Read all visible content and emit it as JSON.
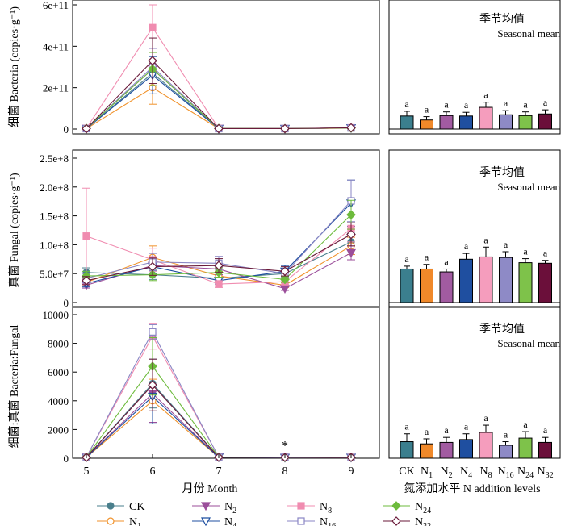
{
  "series_styles": [
    {
      "key": "CK",
      "label_base": "CK",
      "label_sub": "",
      "color": "#4a7f8c",
      "marker": "circle",
      "fill": true,
      "bar_color": "#3b7f8e"
    },
    {
      "key": "N1",
      "label_base": "N",
      "label_sub": "1",
      "color": "#f0922b",
      "marker": "circle",
      "fill": false,
      "bar_color": "#f0892a"
    },
    {
      "key": "N2",
      "label_base": "N",
      "label_sub": "2",
      "color": "#9b4e9a",
      "marker": "tri-down",
      "fill": true,
      "bar_color": "#a25ba1"
    },
    {
      "key": "N4",
      "label_base": "N",
      "label_sub": "4",
      "color": "#1f4fa0",
      "marker": "tri-down",
      "fill": false,
      "bar_color": "#1f4fa0"
    },
    {
      "key": "N8",
      "label_base": "N",
      "label_sub": "8",
      "color": "#f08cb0",
      "marker": "square",
      "fill": true,
      "bar_color": "#f59dbd"
    },
    {
      "key": "N16",
      "label_base": "N",
      "label_sub": "16",
      "color": "#8a86c4",
      "marker": "square",
      "fill": false,
      "bar_color": "#8e8ac6"
    },
    {
      "key": "N24",
      "label_base": "N",
      "label_sub": "24",
      "color": "#6dbb3c",
      "marker": "diamond",
      "fill": true,
      "bar_color": "#7ec24a"
    },
    {
      "key": "N32",
      "label_base": "N",
      "label_sub": "32",
      "color": "#6a1a3a",
      "marker": "diamond",
      "fill": false,
      "bar_color": "#6b0f3a"
    }
  ],
  "x_axis": {
    "ticks": [
      5,
      6,
      7,
      8,
      9
    ],
    "xlabel": "月份 Month"
  },
  "bar_x_axis": {
    "xlabel": "氮添加水平 N addition levels"
  },
  "legend_order": [
    "CK",
    "N2",
    "N8",
    "N24",
    "N1",
    "N4",
    "N16",
    "N32"
  ],
  "chart_data": [
    {
      "type": "line",
      "panel": "bacteria",
      "ylabel": "细菌 Bacteria (copies·g⁻¹)",
      "ylim": [
        0,
        600000000000
      ],
      "yticks": [
        0,
        200000000000,
        400000000000,
        600000000000
      ],
      "ytick_labels": [
        "0",
        "2e+11",
        "4e+11",
        "6e+11"
      ],
      "x": [
        5,
        6,
        7,
        8,
        9
      ],
      "series": [
        {
          "name": "CK",
          "values": [
            2000000000.0,
            270000000000.0,
            3000000000.0,
            2000000000.0,
            5000000000.0
          ],
          "err": [
            1000000000.0,
            60000000000.0,
            1000000000.0,
            1000000000.0,
            2000000000.0
          ]
        },
        {
          "name": "N1",
          "values": [
            2000000000.0,
            200000000000.0,
            2000000000.0,
            2000000000.0,
            4000000000.0
          ],
          "err": [
            1000000000.0,
            80000000000.0,
            1000000000.0,
            1000000000.0,
            2000000000.0
          ]
        },
        {
          "name": "N2",
          "values": [
            3000000000.0,
            290000000000.0,
            3000000000.0,
            2000000000.0,
            5000000000.0
          ],
          "err": [
            1000000000.0,
            100000000000.0,
            1000000000.0,
            1000000000.0,
            2000000000.0
          ]
        },
        {
          "name": "N4",
          "values": [
            2000000000.0,
            260000000000.0,
            2000000000.0,
            2000000000.0,
            5000000000.0
          ],
          "err": [
            1000000000.0,
            90000000000.0,
            1000000000.0,
            1000000000.0,
            2000000000.0
          ]
        },
        {
          "name": "N8",
          "values": [
            3000000000.0,
            490000000000.0,
            3000000000.0,
            2000000000.0,
            6000000000.0
          ],
          "err": [
            1000000000.0,
            120000000000.0,
            1000000000.0,
            1000000000.0,
            2000000000.0
          ]
        },
        {
          "name": "N16",
          "values": [
            2000000000.0,
            300000000000.0,
            2000000000.0,
            2000000000.0,
            5000000000.0
          ],
          "err": [
            1000000000.0,
            90000000000.0,
            1000000000.0,
            1000000000.0,
            2000000000.0
          ]
        },
        {
          "name": "N24",
          "values": [
            3000000000.0,
            290000000000.0,
            3000000000.0,
            2000000000.0,
            5000000000.0
          ],
          "err": [
            1000000000.0,
            80000000000.0,
            1000000000.0,
            1000000000.0,
            2000000000.0
          ]
        },
        {
          "name": "N32",
          "values": [
            2000000000.0,
            330000000000.0,
            2000000000.0,
            2000000000.0,
            6000000000.0
          ],
          "err": [
            1000000000.0,
            110000000000.0,
            1000000000.0,
            1000000000.0,
            2000000000.0
          ]
        }
      ]
    },
    {
      "type": "bar",
      "panel": "bacteria-seasonal",
      "title_cn": "季节均值",
      "title_en": "Seasonal mean",
      "ylim": [
        0,
        600000000000
      ],
      "categories": [
        "CK",
        "N1",
        "N2",
        "N4",
        "N8",
        "N16",
        "N24",
        "N32"
      ],
      "values": [
        63000000000.0,
        44000000000.0,
        65000000000.0,
        63000000000.0,
        105000000000.0,
        69000000000.0,
        65000000000.0,
        73000000000.0
      ],
      "err": [
        23000000000.0,
        16000000000.0,
        18000000000.0,
        18000000000.0,
        25000000000.0,
        20000000000.0,
        18000000000.0,
        20000000000.0
      ],
      "letters": [
        "a",
        "a",
        "a",
        "a",
        "a",
        "a",
        "a",
        "a"
      ]
    },
    {
      "type": "line",
      "panel": "fungal",
      "ylabel": "真菌 Fungal (copies·g⁻¹)",
      "ylim": [
        0,
        250000000
      ],
      "yticks": [
        0,
        50000000,
        100000000,
        150000000,
        200000000,
        250000000
      ],
      "ytick_labels": [
        "0",
        "5.0e+7",
        "1.0e+8",
        "1.5e+8",
        "2.0e+8",
        "2.5e+8"
      ],
      "x": [
        5,
        6,
        7,
        8,
        9
      ],
      "series": [
        {
          "name": "CK",
          "values": [
            52000000.0,
            48000000.0,
            42000000.0,
            50000000.0,
            105000000.0
          ],
          "err": [
            8000000.0,
            8000000.0,
            6000000.0,
            5000000.0,
            15000000.0
          ]
        },
        {
          "name": "N1",
          "values": [
            35000000.0,
            78000000.0,
            46000000.0,
            30000000.0,
            98000000.0
          ],
          "err": [
            6000000.0,
            20000000.0,
            8000000.0,
            4000000.0,
            15000000.0
          ]
        },
        {
          "name": "N2",
          "values": [
            30000000.0,
            64000000.0,
            58000000.0,
            24000000.0,
            86000000.0
          ],
          "err": [
            5000000.0,
            15000000.0,
            10000000.0,
            3000000.0,
            12000000.0
          ]
        },
        {
          "name": "N4",
          "values": [
            33000000.0,
            62000000.0,
            38000000.0,
            54000000.0,
            172000000.0
          ],
          "err": [
            6000000.0,
            12000000.0,
            6000000.0,
            10000000.0,
            40000000.0
          ]
        },
        {
          "name": "N8",
          "values": [
            115000000.0,
            74000000.0,
            32000000.0,
            36000000.0,
            128000000.0
          ],
          "err": [
            83000000.0,
            20000000.0,
            6000000.0,
            5000000.0,
            23000000.0
          ]
        },
        {
          "name": "N16",
          "values": [
            42000000.0,
            70000000.0,
            68000000.0,
            50000000.0,
            176000000.0
          ],
          "err": [
            8000000.0,
            15000000.0,
            12000000.0,
            6000000.0,
            36000000.0
          ]
        },
        {
          "name": "N24",
          "values": [
            46000000.0,
            48000000.0,
            52000000.0,
            40000000.0,
            152000000.0
          ],
          "err": [
            8000000.0,
            10000000.0,
            8000000.0,
            5000000.0,
            25000000.0
          ]
        },
        {
          "name": "N32",
          "values": [
            38000000.0,
            62000000.0,
            64000000.0,
            54000000.0,
            118000000.0
          ],
          "err": [
            7000000.0,
            15000000.0,
            12000000.0,
            8000000.0,
            20000000.0
          ]
        }
      ]
    },
    {
      "type": "bar",
      "panel": "fungal-seasonal",
      "title_cn": "季节均值",
      "title_en": "Seasonal mean",
      "ylim": [
        0,
        250000000
      ],
      "categories": [
        "CK",
        "N1",
        "N2",
        "N4",
        "N8",
        "N16",
        "N24",
        "N32"
      ],
      "values": [
        58000000.0,
        58000000.0,
        53000000.0,
        75000000.0,
        79000000.0,
        78000000.0,
        69000000.0,
        68000000.0
      ],
      "err": [
        5000000.0,
        8000000.0,
        5000000.0,
        10000000.0,
        17000000.0,
        10000000.0,
        7000000.0,
        5000000.0
      ],
      "letters": [
        "a",
        "a",
        "a",
        "a",
        "a",
        "a",
        "a",
        "a"
      ]
    },
    {
      "type": "line",
      "panel": "ratio",
      "ylabel": "细菌:真菌 Bacteria:Fungal",
      "ylim": [
        0,
        10000
      ],
      "yticks": [
        0,
        2000,
        4000,
        6000,
        8000,
        10000
      ],
      "ytick_labels": [
        "0",
        "2000",
        "4000",
        "6000",
        "8000",
        "10000"
      ],
      "x": [
        5,
        6,
        7,
        8,
        9
      ],
      "annotation": {
        "x": 8,
        "y": 600,
        "text": "*"
      },
      "series": [
        {
          "name": "CK",
          "values": [
            60,
            5200,
            80,
            50,
            60
          ],
          "err": [
            20,
            1700,
            30,
            20,
            20
          ]
        },
        {
          "name": "N1",
          "values": [
            50,
            4000,
            60,
            60,
            50
          ],
          "err": [
            20,
            1500,
            20,
            20,
            20
          ]
        },
        {
          "name": "N2",
          "values": [
            70,
            4500,
            70,
            50,
            60
          ],
          "err": [
            20,
            2000,
            20,
            20,
            20
          ]
        },
        {
          "name": "N4",
          "values": [
            60,
            4300,
            60,
            40,
            50
          ],
          "err": [
            20,
            1900,
            20,
            20,
            20
          ]
        },
        {
          "name": "N8",
          "values": [
            80,
            8500,
            90,
            60,
            60
          ],
          "err": [
            20,
            900,
            30,
            20,
            20
          ]
        },
        {
          "name": "N16",
          "values": [
            60,
            8800,
            70,
            70,
            50
          ],
          "err": [
            20,
            500,
            20,
            20,
            20
          ]
        },
        {
          "name": "N24",
          "values": [
            70,
            6400,
            80,
            50,
            60
          ],
          "err": [
            20,
            2000,
            30,
            20,
            20
          ]
        },
        {
          "name": "N32",
          "values": [
            60,
            5100,
            70,
            60,
            60
          ],
          "err": [
            20,
            1800,
            20,
            20,
            20
          ]
        }
      ]
    },
    {
      "type": "bar",
      "panel": "ratio-seasonal",
      "title_cn": "季节均值",
      "title_en": "Seasonal mean",
      "ylim": [
        0,
        10000
      ],
      "categories": [
        "CK",
        "N1",
        "N2",
        "N4",
        "N8",
        "N16",
        "N24",
        "N32"
      ],
      "values": [
        1150,
        1000,
        1100,
        1300,
        1800,
        900,
        1400,
        1100
      ],
      "err": [
        550,
        350,
        350,
        400,
        500,
        250,
        450,
        350
      ],
      "letters": [
        "a",
        "a",
        "a",
        "a",
        "a",
        "a",
        "a",
        "a"
      ]
    }
  ]
}
